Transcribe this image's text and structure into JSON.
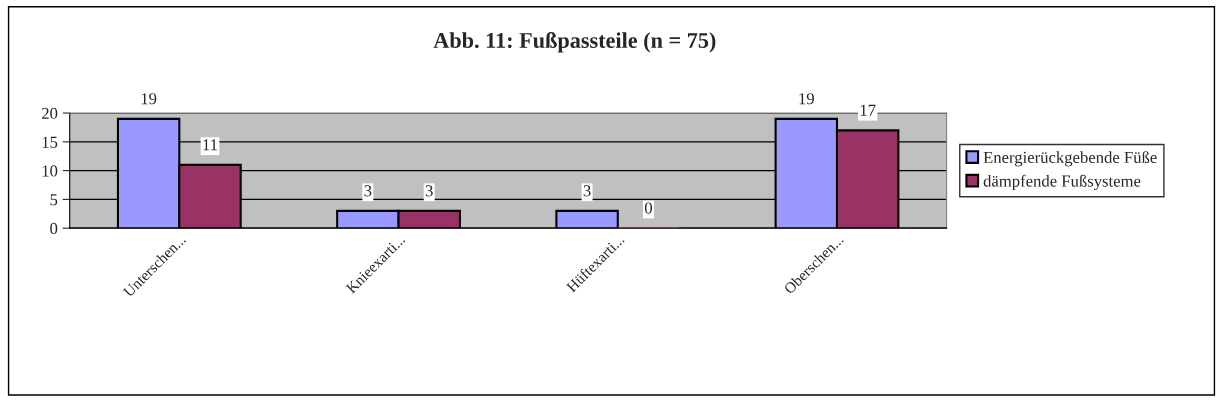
{
  "chart_data": {
    "type": "bar",
    "title": "Abb. 11: Fußpassteile (n = 75)",
    "categories": [
      "Unterschen...",
      "Knieexarti...",
      "Hüftexarti...",
      "Oberschen..."
    ],
    "series": [
      {
        "name": "Energierückgebende Füße",
        "color": "#9999ff",
        "values": [
          19,
          3,
          3,
          19
        ]
      },
      {
        "name": "dämpfende Fußsysteme",
        "color": "#993366",
        "values": [
          11,
          3,
          0,
          17
        ]
      }
    ],
    "ylim": [
      0,
      20
    ],
    "yticks": [
      0,
      5,
      10,
      15,
      20
    ],
    "grid": "y",
    "legend": "right",
    "data_labels": true
  }
}
